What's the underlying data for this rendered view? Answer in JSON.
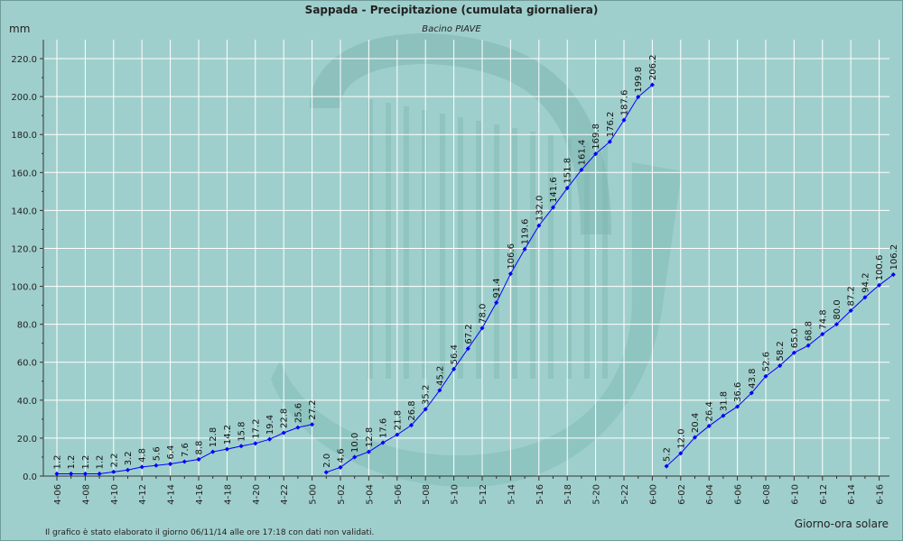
{
  "header": {
    "title": "Sappada - Precipitazione (cumulata giornaliera)",
    "subtitle": "Bacino PIAVE"
  },
  "footer": {
    "note": "Il grafico è stato elaborato il giorno 06/11/14 alle ore 17:18 con dati non validati."
  },
  "colors": {
    "background": "#9fcfcc",
    "plot_background": "#9fcfcc",
    "grid": "#ffffff",
    "series": "#0000ff",
    "watermark": "#7db7b1"
  },
  "chart_data": {
    "type": "line",
    "title": "Sappada - Precipitazione (cumulata giornaliera)",
    "subtitle": "Bacino PIAVE",
    "ylabel": "mm",
    "xlabel": "Giorno-ora solare",
    "ylim": [
      0,
      230
    ],
    "yticks": [
      "0.0",
      "20.0",
      "40.0",
      "60.0",
      "80.0",
      "100.0",
      "120.0",
      "140.0",
      "160.0",
      "180.0",
      "200.0",
      "220.0"
    ],
    "xticks": [
      "4-06",
      "4-08",
      "4-10",
      "4-12",
      "4-14",
      "4-16",
      "4-18",
      "4-20",
      "4-22",
      "5-00",
      "5-02",
      "5-04",
      "5-06",
      "5-08",
      "5-10",
      "5-12",
      "5-14",
      "5-16",
      "5-18",
      "5-20",
      "5-22",
      "6-00",
      "6-02",
      "6-04",
      "6-06",
      "6-08",
      "6-10",
      "6-12",
      "6-14",
      "6-16"
    ],
    "grid": true,
    "series": [
      {
        "segments": [
          {
            "x": [
              "4-06",
              "4-07",
              "4-08",
              "4-09",
              "4-10",
              "4-11",
              "4-12",
              "4-13",
              "4-14",
              "4-15",
              "4-16",
              "4-17",
              "4-18",
              "4-19",
              "4-20",
              "4-21",
              "4-22",
              "4-23",
              "5-00"
            ],
            "values": [
              1.2,
              1.2,
              1.2,
              1.2,
              2.2,
              3.2,
              4.8,
              5.6,
              6.4,
              7.6,
              8.8,
              12.8,
              14.2,
              15.8,
              17.2,
              19.4,
              22.8,
              25.6,
              27.2
            ],
            "labels": [
              "1.2",
              "1.2",
              "1.2",
              "1.2",
              "2.2",
              "3.2",
              "4.8",
              "5.6",
              "6.4",
              "7.6",
              "8.8",
              "12.8",
              "14.2",
              "15.8",
              "17.2",
              "19.4",
              "22.8",
              "25.6",
              "27.2"
            ]
          },
          {
            "x": [
              "5-01",
              "5-02",
              "5-03",
              "5-04",
              "5-05",
              "5-06",
              "5-07",
              "5-08",
              "5-09",
              "5-10",
              "5-11",
              "5-12",
              "5-13",
              "5-14",
              "5-15",
              "5-16",
              "5-17",
              "5-18",
              "5-19",
              "5-20",
              "5-21",
              "5-22",
              "5-23",
              "6-00"
            ],
            "values": [
              2.0,
              4.6,
              10.0,
              12.8,
              17.6,
              21.8,
              26.8,
              35.2,
              45.2,
              56.4,
              67.2,
              78.0,
              91.4,
              106.6,
              119.6,
              132.0,
              141.6,
              151.8,
              161.4,
              169.8,
              176.2,
              187.6,
              199.8,
              206.2
            ],
            "labels": [
              "2.0",
              "4.6",
              "10.0",
              "12.8",
              "17.6",
              "21.8",
              "26.8",
              "35.2",
              "45.2",
              "56.4",
              "67.2",
              "78.0",
              "91.4",
              "106.6",
              "119.6",
              "132.0",
              "141.6",
              "151.8",
              "161.4",
              "169.8",
              "176.2",
              "187.6",
              "199.8",
              "206.2"
            ]
          },
          {
            "x": [
              "6-01",
              "6-02",
              "6-03",
              "6-04",
              "6-05",
              "6-06",
              "6-07",
              "6-08",
              "6-09",
              "6-10",
              "6-11",
              "6-12",
              "6-13",
              "6-14",
              "6-15",
              "6-16",
              "6-17"
            ],
            "values": [
              5.2,
              12.0,
              20.4,
              26.4,
              31.8,
              36.6,
              43.8,
              52.6,
              58.2,
              65.0,
              68.8,
              74.8,
              80.0,
              87.2,
              94.2,
              100.6,
              106.2
            ],
            "labels": [
              "5.2",
              "12.0",
              "20.4",
              "26.4",
              "31.8",
              "36.6",
              "43.8",
              "52.6",
              "58.2",
              "65.0",
              "68.8",
              "74.8",
              "80.0",
              "87.2",
              "94.2",
              "100.6",
              "106.2"
            ]
          }
        ]
      }
    ]
  }
}
